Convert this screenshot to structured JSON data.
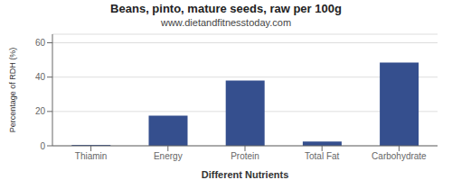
{
  "chart_data": {
    "type": "bar",
    "title": "Beans, pinto, mature seeds, raw per 100g",
    "subtitle": "www.dietandfitnesstoday.com",
    "xlabel": "Different Nutrients",
    "ylabel": "Percentage of RDH (%)",
    "categories": [
      "Thiamin",
      "Energy",
      "Protein",
      "Total Fat",
      "Carbohydrate"
    ],
    "values": [
      0.5,
      17.5,
      38.0,
      2.5,
      48.5
    ],
    "color": "#354f8e",
    "ylim": [
      0,
      65
    ],
    "yticks": [
      0,
      20,
      40,
      60
    ],
    "grid": true
  }
}
